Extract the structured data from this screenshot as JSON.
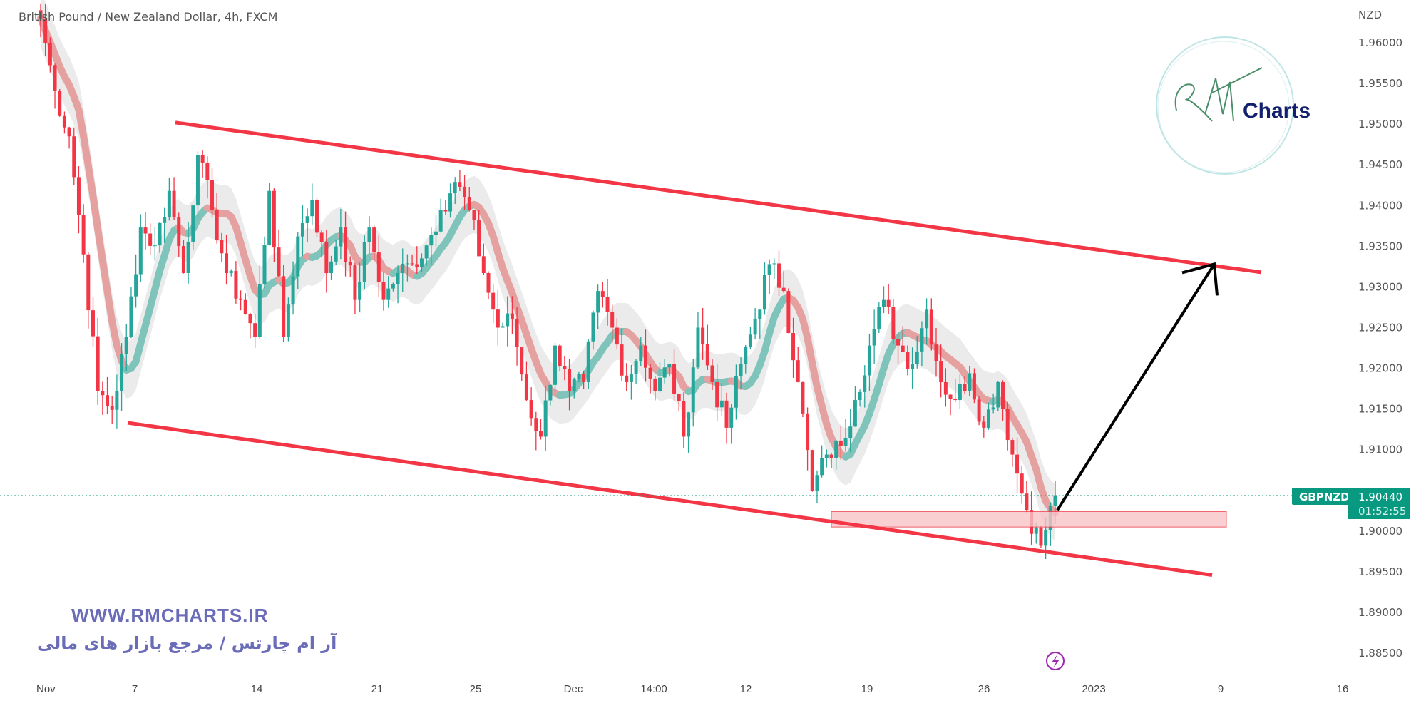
{
  "header": {
    "title": "British Pound / New Zealand Dollar, 4h, FXCM"
  },
  "watermark": {
    "url": "WWW.RMCHARTS.IR",
    "tagline": "آر ام چارتس / مرجع بازار های مالی",
    "logo_text": "RM Charts"
  },
  "colors": {
    "up": "#26a69a",
    "down": "#f23645",
    "channel": "#f23645",
    "zone": "#f8c4c8",
    "arrow": "#000000",
    "price_tag": "#089981",
    "lightning": "#9c27b0"
  },
  "icons": {
    "event": "lightning-icon"
  },
  "chart_data": {
    "type": "candlestick",
    "symbol": "GBPNZD",
    "currency": "NZD",
    "last_price": "1.90440",
    "countdown": "01:52:55",
    "ylim": [
      1.8815,
      1.9675
    ],
    "yticks": [
      "1.96000",
      "1.95500",
      "1.95000",
      "1.94500",
      "1.94000",
      "1.93500",
      "1.93000",
      "1.92500",
      "1.92000",
      "1.91500",
      "1.91000",
      "1.90000",
      "1.89500",
      "1.89000",
      "1.88500"
    ],
    "xticks": [
      "Nov",
      "7",
      "14",
      "21",
      "25",
      "Dec",
      "14:00",
      "12",
      "19",
      "26",
      "2023",
      "9",
      "16"
    ],
    "grid": false,
    "closes": [
      1.963,
      1.9541,
      1.9485,
      1.934,
      1.9172,
      1.9149,
      1.9239,
      1.9373,
      1.9351,
      1.9418,
      1.9317,
      1.9462,
      1.9395,
      1.9317,
      1.9284,
      1.9239,
      1.9418,
      1.9239,
      1.9362,
      1.9407,
      1.9317,
      1.9373,
      1.9284,
      1.9373,
      1.9284,
      1.9317,
      1.9328,
      1.9351,
      1.9395,
      1.9429,
      1.9395,
      1.9317,
      1.925,
      1.9261,
      1.9161,
      1.9116,
      1.9228,
      1.9172,
      1.9183,
      1.9295,
      1.925,
      1.9183,
      1.9228,
      1.9172,
      1.9205,
      1.9116,
      1.925,
      1.9183,
      1.9127,
      1.9205,
      1.9261,
      1.9328,
      1.9295,
      1.9183,
      1.9049,
      1.9094,
      1.9105,
      1.9161,
      1.9228,
      1.9284,
      1.9228,
      1.9205,
      1.9272,
      1.9183,
      1.9161,
      1.9194,
      1.9127,
      1.9183,
      1.9094,
      1.9026,
      1.8982,
      1.9044
    ],
    "annotations": {
      "channel_upper": [
        1.9502,
        1.9318
      ],
      "channel_lower": [
        1.9133,
        1.8946
      ],
      "support_zone": [
        1.9005,
        1.9024
      ],
      "arrow": [
        1.9026,
        1.9328
      ]
    }
  }
}
